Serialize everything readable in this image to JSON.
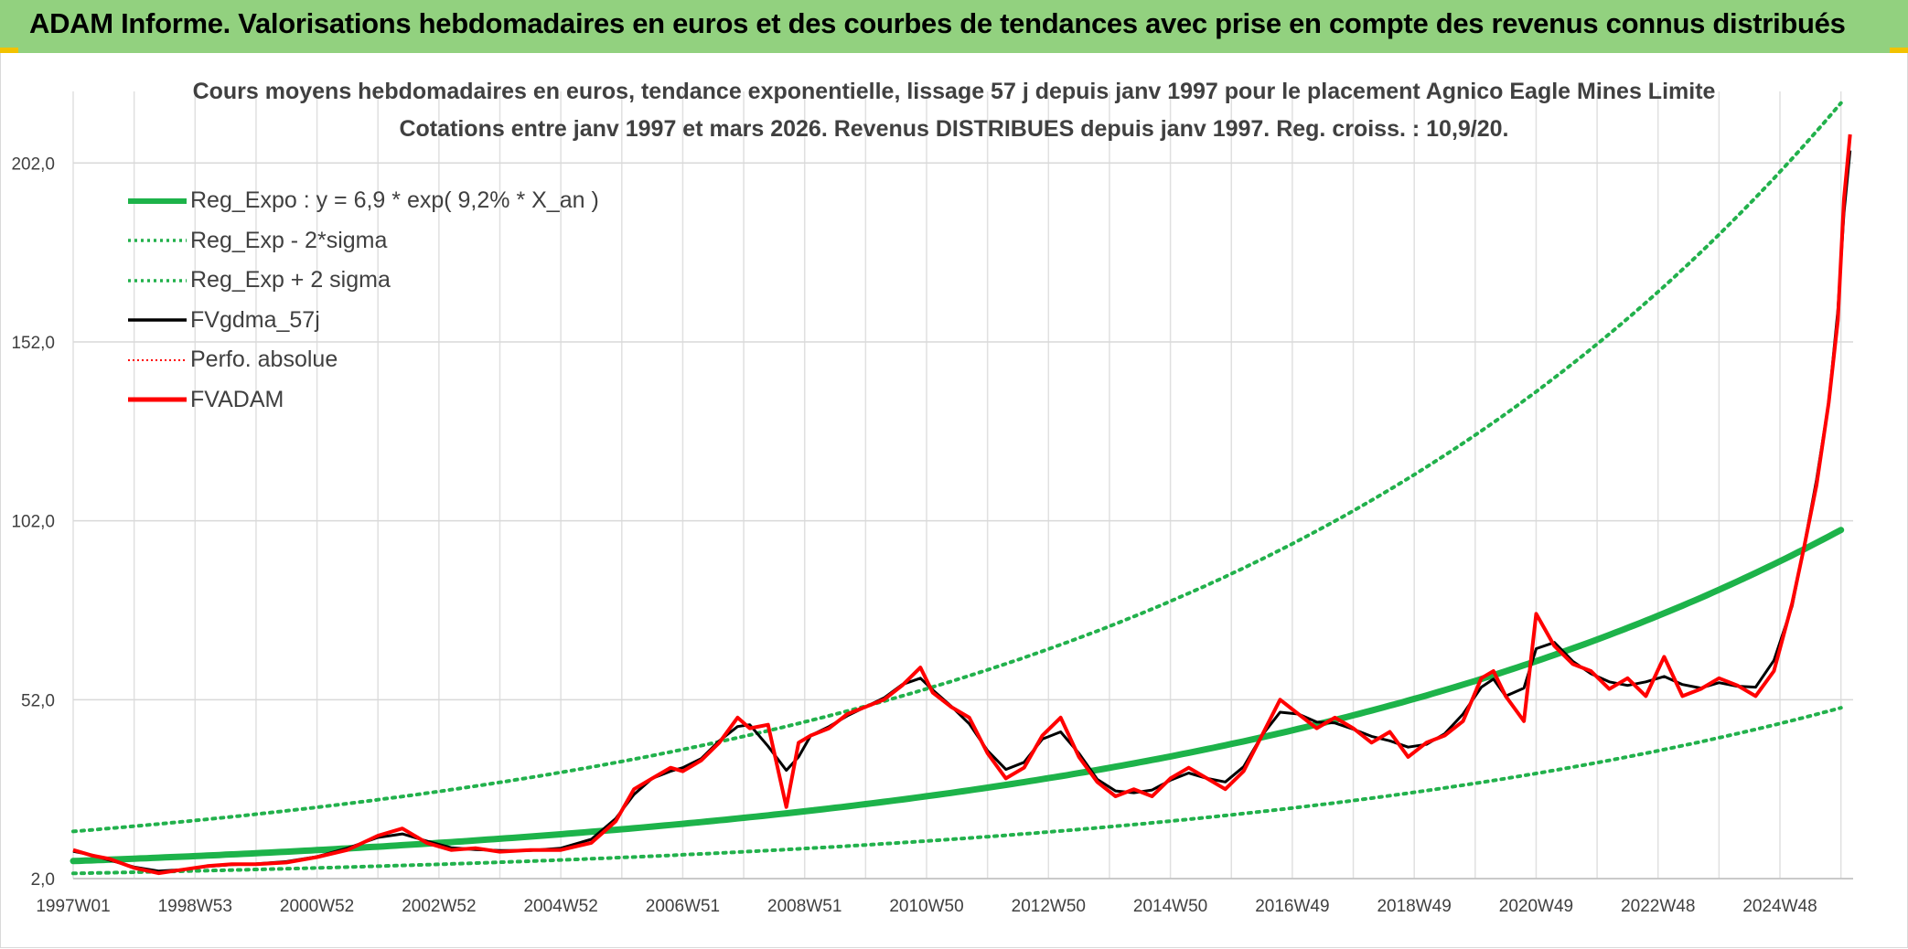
{
  "report_title": "ADAM Informe. Valorisations hebdomadaires en euros et des courbes de tendances avec prise en compte des revenus connus distribués",
  "colors": {
    "header_bg": "#92d17f",
    "trend_green": "#1db34a",
    "band_green": "#22b14c",
    "price_red": "#ff0000",
    "smooth_black": "#000000",
    "grid": "#d9d9d9"
  },
  "chart_data": {
    "type": "line",
    "title_lines": [
      "Cours moyens hebdomadaires en euros, tendance exponentielle, lissage 57 j depuis janv 1997 pour le placement Agnico Eagle Mines Limite",
      "Cotations entre janv 1997 et mars 2026. Revenus DISTRIBUES depuis janv 1997. Reg. croiss. : 10,9/20."
    ],
    "x_range": [
      1997.0,
      2026.2
    ],
    "x_tick_labels": [
      "1997W01",
      "1998W53",
      "2000W52",
      "2002W52",
      "2004W52",
      "2006W51",
      "2008W51",
      "2010W50",
      "2012W50",
      "2014W50",
      "2016W49",
      "2018W49",
      "2020W49",
      "2022W48",
      "2024W48"
    ],
    "x_tick_positions": [
      1997.0,
      1999.0,
      2001.0,
      2003.0,
      2005.0,
      2007.0,
      2009.0,
      2011.0,
      2013.0,
      2015.0,
      2017.0,
      2019.0,
      2021.0,
      2023.0,
      2025.0
    ],
    "y_range": [
      2.0,
      222.0
    ],
    "y_ticks": [
      2.0,
      52.0,
      102.0,
      152.0,
      202.0
    ],
    "y_tick_labels": [
      "2,0",
      "52,0",
      "102,0",
      "152,0",
      "202,0"
    ],
    "grid": true,
    "legend_position": "top-left",
    "regression": {
      "a": 6.9,
      "rate": 0.092,
      "lower_factor": 0.5,
      "upper_factor": 2.2
    },
    "series": [
      {
        "name": "Reg_Expo : y = 6,9 * exp( 9,2% *  X_an )",
        "style": "solid-thick",
        "color": "#1db34a",
        "kind": "regression"
      },
      {
        "name": "Reg_Exp - 2*sigma",
        "style": "dotted",
        "color": "#22b14c",
        "kind": "lower"
      },
      {
        "name": "Reg_Exp + 2 sigma",
        "style": "dotted",
        "color": "#22b14c",
        "kind": "upper"
      },
      {
        "name": "FVgdma_57j",
        "style": "solid",
        "color": "#000000",
        "kind": "smooth"
      },
      {
        "name": "Perfo. absolue",
        "style": "dotted-thin",
        "color": "#ff0000",
        "kind": "none"
      },
      {
        "name": "FVADAM",
        "style": "solid-thick",
        "color": "#ff0000",
        "kind": "price",
        "x": [
          1997.0,
          1997.3,
          1997.6,
          1998.0,
          1998.4,
          1998.8,
          1999.2,
          1999.6,
          2000.0,
          2000.5,
          2001.0,
          2001.5,
          2002.0,
          2002.4,
          2002.8,
          2003.2,
          2003.6,
          2004.0,
          2004.5,
          2005.0,
          2005.5,
          2005.9,
          2006.2,
          2006.5,
          2006.8,
          2007.0,
          2007.3,
          2007.6,
          2007.9,
          2008.1,
          2008.4,
          2008.7,
          2008.9,
          2009.1,
          2009.4,
          2009.7,
          2010.0,
          2010.3,
          2010.6,
          2010.9,
          2011.1,
          2011.4,
          2011.7,
          2012.0,
          2012.3,
          2012.6,
          2012.9,
          2013.2,
          2013.5,
          2013.8,
          2014.1,
          2014.4,
          2014.7,
          2015.0,
          2015.3,
          2015.6,
          2015.9,
          2016.2,
          2016.5,
          2016.8,
          2017.1,
          2017.4,
          2017.7,
          2018.0,
          2018.3,
          2018.6,
          2018.9,
          2019.2,
          2019.5,
          2019.8,
          2020.1,
          2020.3,
          2020.5,
          2020.8,
          2021.0,
          2021.3,
          2021.6,
          2021.9,
          2022.2,
          2022.5,
          2022.8,
          2023.1,
          2023.4,
          2023.7,
          2024.0,
          2024.3,
          2024.6,
          2024.9,
          2025.2,
          2025.4,
          2025.6,
          2025.8,
          2025.95,
          2026.05,
          2026.15
        ],
        "y": [
          10.0,
          8.5,
          7.5,
          5.0,
          3.5,
          4.5,
          5.5,
          6.0,
          6.0,
          6.5,
          8.0,
          10.0,
          14.0,
          16.0,
          12.0,
          10.0,
          10.5,
          9.5,
          10.0,
          10.0,
          12.0,
          18.0,
          27.0,
          30.0,
          33.0,
          32.0,
          35.0,
          40.0,
          47.0,
          44.0,
          45.0,
          22.0,
          40.0,
          42.0,
          44.0,
          48.0,
          50.0,
          52.0,
          56.0,
          61.0,
          54.0,
          50.0,
          47.0,
          37.0,
          30.0,
          33.0,
          42.0,
          47.0,
          36.0,
          29.0,
          25.0,
          27.0,
          25.0,
          30.0,
          33.0,
          30.0,
          27.0,
          32.0,
          42.0,
          52.0,
          48.0,
          44.0,
          47.0,
          44.0,
          40.0,
          43.0,
          36.0,
          40.0,
          42.0,
          46.0,
          58.0,
          60.0,
          53.0,
          46.0,
          76.0,
          67.0,
          62.0,
          60.0,
          55.0,
          58.0,
          53.0,
          64.0,
          53.0,
          55.0,
          58.0,
          56.0,
          53.0,
          60.0,
          79.0,
          95.0,
          112.0,
          135.0,
          158.0,
          192.0,
          210.0
        ]
      }
    ]
  }
}
